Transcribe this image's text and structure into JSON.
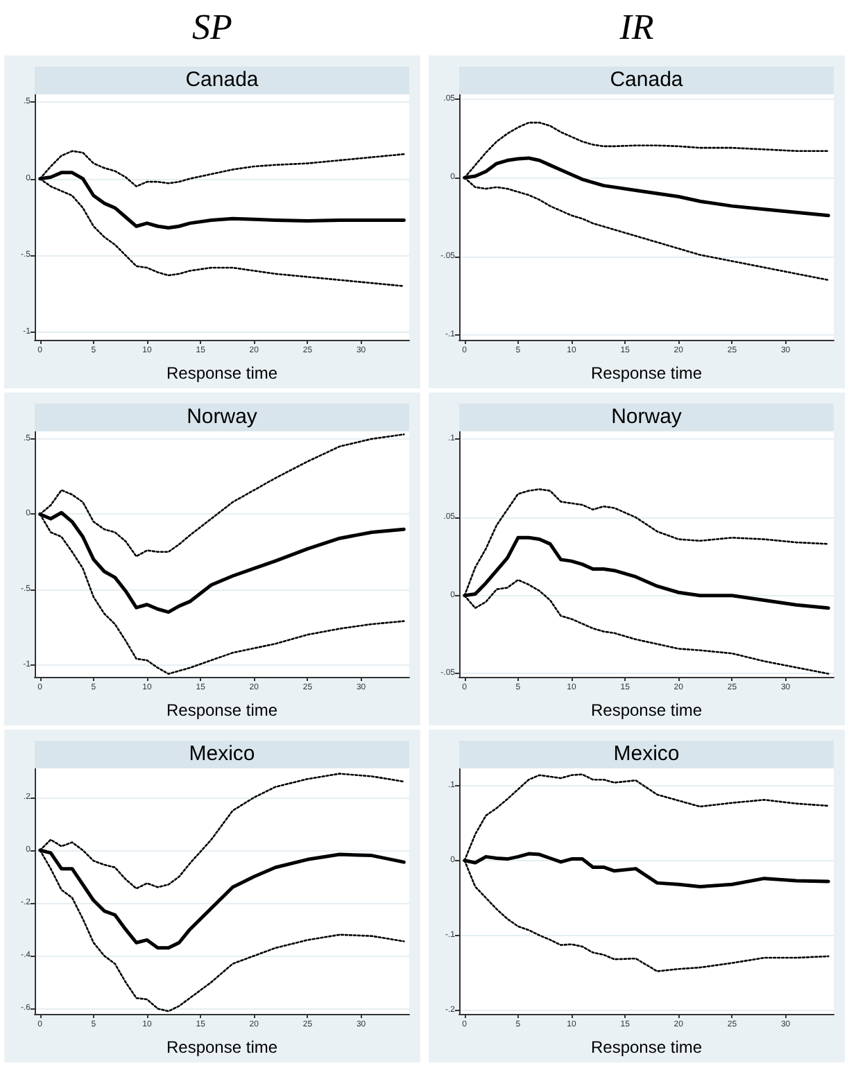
{
  "chart_data": [
    {
      "type": "line",
      "title": "Canada",
      "annotations": [
        "SP"
      ],
      "xlabel": "Response time",
      "x": [
        0,
        1,
        2,
        3,
        4,
        5,
        6,
        7,
        8,
        9,
        10,
        11,
        12,
        13,
        14,
        16,
        18,
        20,
        22,
        25,
        28,
        31,
        34
      ],
      "xlim": [
        -0.5,
        34.5
      ],
      "xticks": [
        0,
        5,
        10,
        15,
        20,
        25,
        30
      ],
      "ylim": [
        -1.05,
        0.55
      ],
      "yticks": [
        {
          "value": -1,
          "label": "-1"
        },
        {
          "value": -0.5,
          "label": "-.5"
        },
        {
          "value": 0,
          "label": "0"
        },
        {
          "value": 0.5,
          "label": ".5"
        }
      ],
      "grid": "y",
      "marker": "none",
      "series": [
        {
          "color": "#000000",
          "line_style": "dotted",
          "values": [
            0,
            0.08,
            0.15,
            0.18,
            0.17,
            0.1,
            0.07,
            0.05,
            0.01,
            -0.05,
            -0.02,
            -0.02,
            -0.03,
            -0.02,
            0.0,
            0.03,
            0.06,
            0.08,
            0.09,
            0.1,
            0.12,
            0.14,
            0.16
          ]
        },
        {
          "color": "#000000",
          "line_style": "solid",
          "values": [
            0,
            0.01,
            0.04,
            0.04,
            0.0,
            -0.11,
            -0.16,
            -0.19,
            -0.25,
            -0.31,
            -0.29,
            -0.31,
            -0.32,
            -0.31,
            -0.29,
            -0.27,
            -0.26,
            -0.265,
            -0.27,
            -0.275,
            -0.27,
            -0.27,
            -0.27
          ]
        },
        {
          "color": "#000000",
          "line_style": "dotted",
          "values": [
            0,
            -0.05,
            -0.08,
            -0.11,
            -0.19,
            -0.31,
            -0.38,
            -0.43,
            -0.5,
            -0.57,
            -0.58,
            -0.61,
            -0.63,
            -0.62,
            -0.6,
            -0.58,
            -0.58,
            -0.6,
            -0.62,
            -0.64,
            -0.66,
            -0.68,
            -0.7
          ]
        }
      ]
    },
    {
      "type": "line",
      "title": "Canada",
      "annotations": [
        "IR"
      ],
      "xlabel": "Response time",
      "x": [
        0,
        1,
        2,
        3,
        4,
        5,
        6,
        7,
        8,
        9,
        10,
        11,
        12,
        13,
        14,
        16,
        18,
        20,
        22,
        25,
        28,
        31,
        34
      ],
      "xlim": [
        -0.5,
        34.5
      ],
      "xticks": [
        0,
        5,
        10,
        15,
        20,
        25,
        30
      ],
      "ylim": [
        -0.103,
        0.053
      ],
      "yticks": [
        {
          "value": -0.1,
          "label": "-.1"
        },
        {
          "value": -0.05,
          "label": "-.05"
        },
        {
          "value": 0,
          "label": "0"
        },
        {
          "value": 0.05,
          "label": ".05"
        }
      ],
      "grid": "y",
      "marker": "none",
      "series": [
        {
          "color": "#000000",
          "line_style": "dotted",
          "values": [
            0,
            0.008,
            0.016,
            0.023,
            0.028,
            0.032,
            0.035,
            0.035,
            0.033,
            0.029,
            0.026,
            0.023,
            0.021,
            0.02,
            0.02,
            0.0205,
            0.0205,
            0.02,
            0.019,
            0.019,
            0.018,
            0.017,
            0.017
          ]
        },
        {
          "color": "#000000",
          "line_style": "solid",
          "values": [
            0,
            0.001,
            0.004,
            0.009,
            0.011,
            0.012,
            0.0125,
            0.011,
            0.008,
            0.005,
            0.002,
            -0.001,
            -0.003,
            -0.005,
            -0.006,
            -0.008,
            -0.01,
            -0.012,
            -0.015,
            -0.018,
            -0.02,
            -0.022,
            -0.024
          ]
        },
        {
          "color": "#000000",
          "line_style": "dotted",
          "values": [
            0,
            -0.006,
            -0.007,
            -0.006,
            -0.007,
            -0.009,
            -0.011,
            -0.014,
            -0.018,
            -0.021,
            -0.024,
            -0.026,
            -0.029,
            -0.031,
            -0.033,
            -0.037,
            -0.041,
            -0.045,
            -0.049,
            -0.053,
            -0.057,
            -0.061,
            -0.065
          ]
        }
      ]
    },
    {
      "type": "line",
      "title": "Norway",
      "xlabel": "Response time",
      "x": [
        0,
        1,
        2,
        3,
        4,
        5,
        6,
        7,
        8,
        9,
        10,
        11,
        12,
        13,
        14,
        16,
        18,
        20,
        22,
        25,
        28,
        31,
        34
      ],
      "xlim": [
        -0.5,
        34.5
      ],
      "xticks": [
        0,
        5,
        10,
        15,
        20,
        25,
        30
      ],
      "ylim": [
        -1.08,
        0.55
      ],
      "yticks": [
        {
          "value": -1,
          "label": "-1"
        },
        {
          "value": -0.5,
          "label": "-.5"
        },
        {
          "value": 0,
          "label": "0"
        },
        {
          "value": 0.5,
          "label": ".5"
        }
      ],
      "grid": "y",
      "marker": "none",
      "series": [
        {
          "color": "#000000",
          "line_style": "dotted",
          "values": [
            0,
            0.06,
            0.16,
            0.13,
            0.08,
            -0.05,
            -0.1,
            -0.12,
            -0.18,
            -0.28,
            -0.24,
            -0.25,
            -0.25,
            -0.2,
            -0.14,
            -0.03,
            0.08,
            0.16,
            0.24,
            0.35,
            0.45,
            0.5,
            0.53
          ]
        },
        {
          "color": "#000000",
          "line_style": "solid",
          "values": [
            0,
            -0.03,
            0.01,
            -0.05,
            -0.15,
            -0.3,
            -0.38,
            -0.42,
            -0.51,
            -0.62,
            -0.6,
            -0.63,
            -0.65,
            -0.61,
            -0.58,
            -0.47,
            -0.41,
            -0.36,
            -0.31,
            -0.23,
            -0.16,
            -0.12,
            -0.1
          ]
        },
        {
          "color": "#000000",
          "line_style": "dotted",
          "values": [
            0,
            -0.12,
            -0.15,
            -0.25,
            -0.36,
            -0.55,
            -0.66,
            -0.73,
            -0.84,
            -0.96,
            -0.97,
            -1.02,
            -1.06,
            -1.04,
            -1.02,
            -0.97,
            -0.92,
            -0.89,
            -0.86,
            -0.8,
            -0.76,
            -0.73,
            -0.71
          ]
        }
      ]
    },
    {
      "type": "line",
      "title": "Norway",
      "xlabel": "Response time",
      "x": [
        0,
        1,
        2,
        3,
        4,
        5,
        6,
        7,
        8,
        9,
        10,
        11,
        12,
        13,
        14,
        16,
        18,
        20,
        22,
        25,
        28,
        31,
        34
      ],
      "xlim": [
        -0.5,
        34.5
      ],
      "xticks": [
        0,
        5,
        10,
        15,
        20,
        25,
        30
      ],
      "ylim": [
        -0.052,
        0.105
      ],
      "yticks": [
        {
          "value": -0.05,
          "label": "-.05"
        },
        {
          "value": 0,
          "label": "0"
        },
        {
          "value": 0.05,
          "label": ".05"
        },
        {
          "value": 0.1,
          "label": ".1"
        }
      ],
      "grid": "y",
      "marker": "none",
      "series": [
        {
          "color": "#000000",
          "line_style": "dotted",
          "values": [
            0,
            0.018,
            0.03,
            0.045,
            0.055,
            0.065,
            0.067,
            0.068,
            0.067,
            0.06,
            0.059,
            0.058,
            0.055,
            0.057,
            0.056,
            0.05,
            0.041,
            0.036,
            0.035,
            0.037,
            0.036,
            0.034,
            0.033
          ]
        },
        {
          "color": "#000000",
          "line_style": "solid",
          "values": [
            0,
            0.001,
            0.008,
            0.016,
            0.024,
            0.037,
            0.037,
            0.036,
            0.033,
            0.023,
            0.022,
            0.02,
            0.017,
            0.017,
            0.016,
            0.012,
            0.006,
            0.002,
            0.0,
            0.0,
            -0.003,
            -0.006,
            -0.008
          ]
        },
        {
          "color": "#000000",
          "line_style": "dotted",
          "values": [
            0,
            -0.008,
            -0.004,
            0.004,
            0.005,
            0.01,
            0.007,
            0.003,
            -0.003,
            -0.013,
            -0.015,
            -0.018,
            -0.021,
            -0.023,
            -0.024,
            -0.028,
            -0.031,
            -0.034,
            -0.035,
            -0.037,
            -0.042,
            -0.046,
            -0.05
          ]
        }
      ]
    },
    {
      "type": "line",
      "title": "Mexico",
      "xlabel": "Response time",
      "x": [
        0,
        1,
        2,
        3,
        4,
        5,
        6,
        7,
        8,
        9,
        10,
        11,
        12,
        13,
        14,
        16,
        18,
        20,
        22,
        25,
        28,
        31,
        34
      ],
      "xlim": [
        -0.5,
        34.5
      ],
      "xticks": [
        0,
        5,
        10,
        15,
        20,
        25,
        30
      ],
      "ylim": [
        -0.62,
        0.31
      ],
      "yticks": [
        {
          "value": -0.6,
          "label": "-.6"
        },
        {
          "value": -0.4,
          "label": "-.4"
        },
        {
          "value": -0.2,
          "label": "-.2"
        },
        {
          "value": 0,
          "label": "0"
        },
        {
          "value": 0.2,
          "label": ".2"
        }
      ],
      "grid": "y",
      "marker": "none",
      "series": [
        {
          "color": "#000000",
          "line_style": "dotted",
          "values": [
            0,
            0.04,
            0.015,
            0.03,
            0.0,
            -0.04,
            -0.055,
            -0.065,
            -0.11,
            -0.145,
            -0.125,
            -0.14,
            -0.13,
            -0.1,
            -0.05,
            0.04,
            0.15,
            0.2,
            0.24,
            0.27,
            0.29,
            0.28,
            0.26
          ]
        },
        {
          "color": "#000000",
          "line_style": "solid",
          "values": [
            0,
            -0.01,
            -0.07,
            -0.07,
            -0.13,
            -0.19,
            -0.23,
            -0.245,
            -0.3,
            -0.35,
            -0.34,
            -0.37,
            -0.37,
            -0.35,
            -0.3,
            -0.22,
            -0.14,
            -0.1,
            -0.065,
            -0.035,
            -0.016,
            -0.02,
            -0.045
          ]
        },
        {
          "color": "#000000",
          "line_style": "dotted",
          "values": [
            0,
            -0.07,
            -0.15,
            -0.18,
            -0.26,
            -0.35,
            -0.4,
            -0.43,
            -0.5,
            -0.56,
            -0.565,
            -0.6,
            -0.61,
            -0.59,
            -0.56,
            -0.5,
            -0.43,
            -0.4,
            -0.37,
            -0.34,
            -0.32,
            -0.325,
            -0.345
          ]
        }
      ]
    },
    {
      "type": "line",
      "title": "Mexico",
      "xlabel": "Response time",
      "x": [
        0,
        1,
        2,
        3,
        4,
        5,
        6,
        7,
        8,
        9,
        10,
        11,
        12,
        13,
        14,
        16,
        18,
        20,
        22,
        25,
        28,
        31,
        34
      ],
      "xlim": [
        -0.5,
        34.5
      ],
      "xticks": [
        0,
        5,
        10,
        15,
        20,
        25,
        30
      ],
      "ylim": [
        -0.205,
        0.123
      ],
      "yticks": [
        {
          "value": -0.2,
          "label": "-.2"
        },
        {
          "value": -0.1,
          "label": "-.1"
        },
        {
          "value": 0,
          "label": "0"
        },
        {
          "value": 0.1,
          "label": ".1"
        }
      ],
      "grid": "y",
      "marker": "none",
      "series": [
        {
          "color": "#000000",
          "line_style": "dotted",
          "values": [
            0,
            0.035,
            0.06,
            0.07,
            0.082,
            0.095,
            0.108,
            0.114,
            0.112,
            0.11,
            0.114,
            0.115,
            0.108,
            0.108,
            0.104,
            0.107,
            0.088,
            0.08,
            0.072,
            0.077,
            0.081,
            0.076,
            0.073
          ]
        },
        {
          "color": "#000000",
          "line_style": "solid",
          "values": [
            0,
            -0.003,
            0.005,
            0.003,
            0.002,
            0.005,
            0.009,
            0.008,
            0.003,
            -0.002,
            0.002,
            0.002,
            -0.009,
            -0.009,
            -0.014,
            -0.011,
            -0.03,
            -0.032,
            -0.035,
            -0.032,
            -0.024,
            -0.027,
            -0.028
          ]
        },
        {
          "color": "#000000",
          "line_style": "dotted",
          "values": [
            0,
            -0.035,
            -0.05,
            -0.065,
            -0.078,
            -0.088,
            -0.093,
            -0.1,
            -0.106,
            -0.113,
            -0.112,
            -0.115,
            -0.123,
            -0.126,
            -0.132,
            -0.131,
            -0.148,
            -0.145,
            -0.143,
            -0.137,
            -0.13,
            -0.13,
            -0.128
          ]
        }
      ]
    }
  ]
}
